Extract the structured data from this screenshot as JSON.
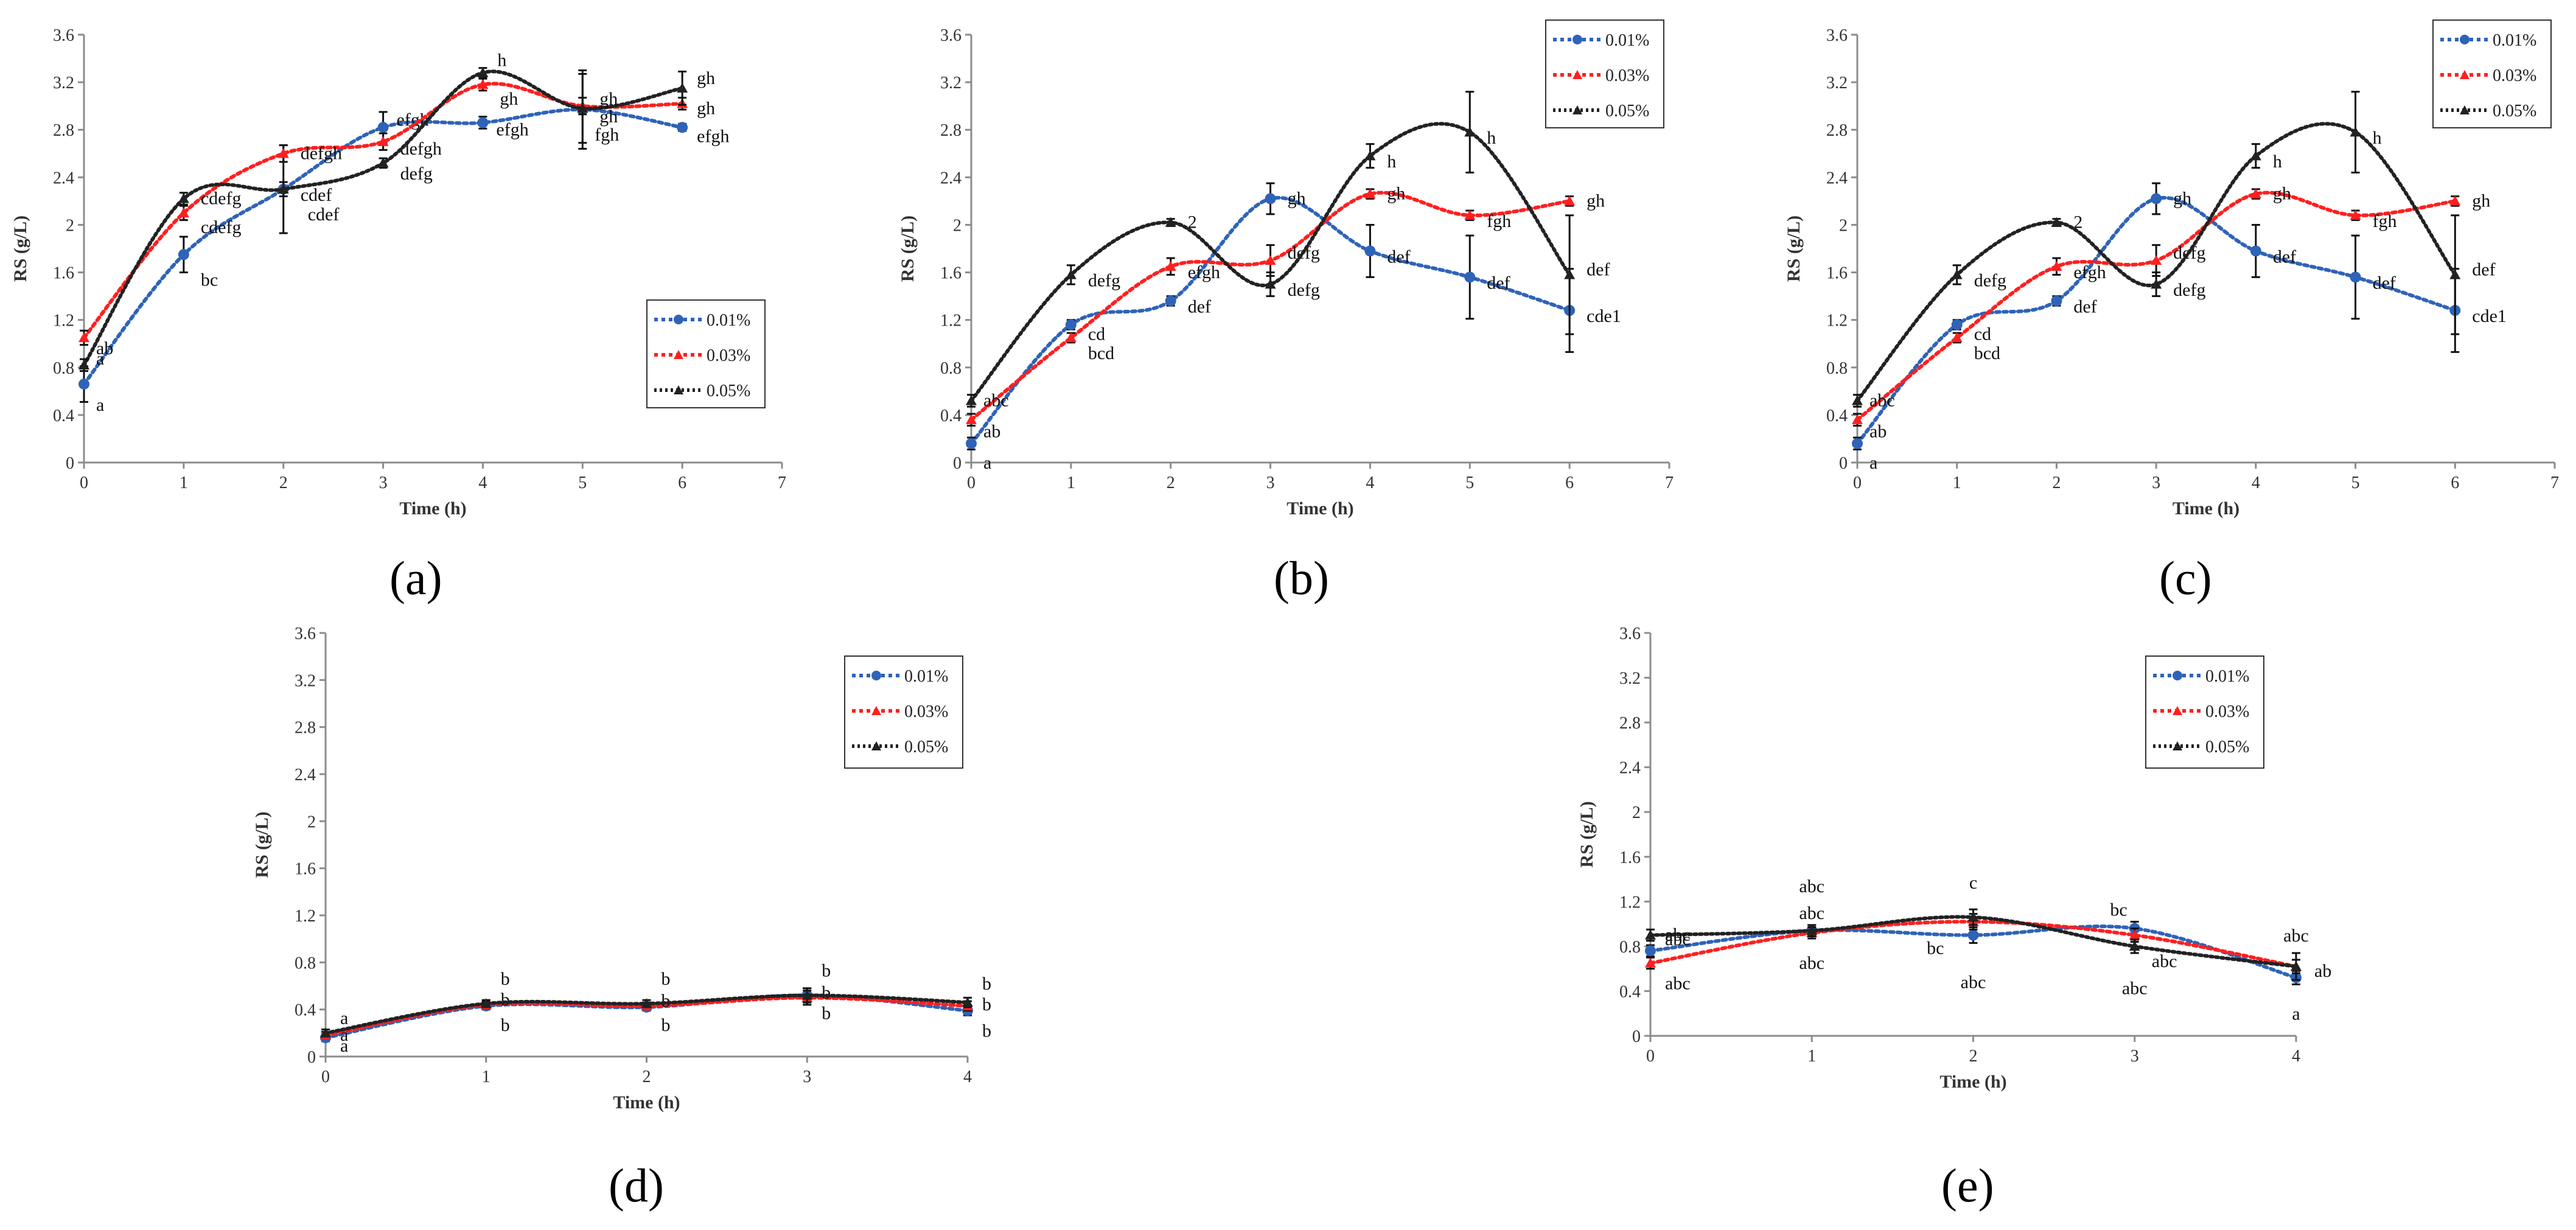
{
  "chart_data": [
    {
      "type": "line",
      "panel_label": "(a)",
      "xlabel": "Time (h)",
      "ylabel": "RS (g/L)",
      "xlim": [
        0,
        7
      ],
      "xticks": [
        "0",
        "1",
        "2",
        "3",
        "4",
        "5",
        "6",
        "7"
      ],
      "ylim": [
        0,
        3.6
      ],
      "yticks": [
        "0",
        "0.4",
        "0.8",
        "1.2",
        "1.6",
        "2",
        "2.4",
        "2.8",
        "3.2",
        "3.6"
      ],
      "legend_position": "middle-right",
      "x": [
        0,
        1,
        2,
        3,
        4,
        5,
        6
      ],
      "series": [
        {
          "name": "0.01%",
          "values": [
            0.66,
            1.75,
            2.3,
            2.82,
            2.86,
            2.97,
            2.82
          ],
          "errors": [
            0.15,
            0.15,
            0.37,
            0.13,
            0.05,
            0.33,
            0.03
          ],
          "labels": [
            "a",
            "bc",
            "cdef",
            "efgh",
            "efgh",
            "fgh",
            "efgh"
          ]
        },
        {
          "name": "0.03%",
          "values": [
            1.05,
            2.1,
            2.6,
            2.7,
            3.18,
            3.0,
            3.02
          ],
          "errors": [
            0.06,
            0.06,
            0.07,
            0.07,
            0.05,
            0.07,
            0.05
          ],
          "labels": [
            "ab",
            "cdefg",
            "defgh",
            "defgh",
            "gh",
            "gh",
            "gh"
          ]
        },
        {
          "name": "0.05%",
          "values": [
            0.82,
            2.22,
            2.3,
            2.52,
            3.28,
            2.98,
            3.15
          ],
          "errors": [
            0.05,
            0.05,
            0.06,
            0.04,
            0.04,
            0.29,
            0.14
          ],
          "labels": [
            "a",
            "cdefg",
            "cdef",
            "defg",
            "h",
            "gh",
            "gh"
          ]
        }
      ]
    },
    {
      "type": "line",
      "panel_label": "(b)",
      "xlabel": "Time (h)",
      "ylabel": "RS (g/L)",
      "xlim": [
        0,
        7
      ],
      "xticks": [
        "0",
        "1",
        "2",
        "3",
        "4",
        "5",
        "6",
        "7"
      ],
      "ylim": [
        0,
        3.6
      ],
      "yticks": [
        "0",
        "0.4",
        "0.8",
        "1.2",
        "1.6",
        "2",
        "2.4",
        "2.8",
        "3.2",
        "3.6"
      ],
      "legend_position": "top-right",
      "x": [
        0,
        1,
        2,
        3,
        4,
        5,
        6
      ],
      "series": [
        {
          "name": "0.01%",
          "values": [
            0.16,
            1.16,
            1.36,
            2.22,
            1.78,
            1.56,
            1.28
          ],
          "errors": [
            0.05,
            0.04,
            0.04,
            0.13,
            0.22,
            0.35,
            0.35
          ],
          "labels": [
            "a",
            "cd",
            "def",
            "gh",
            "def",
            "def",
            "cde1"
          ]
        },
        {
          "name": "0.03%",
          "values": [
            0.36,
            1.05,
            1.65,
            1.7,
            2.26,
            2.08,
            2.2
          ],
          "errors": [
            0.05,
            0.04,
            0.07,
            0.13,
            0.04,
            0.04,
            0.04
          ],
          "labels": [
            "ab",
            "bcd",
            "efgh",
            "defg",
            "gh",
            "fgh",
            "gh"
          ]
        },
        {
          "name": "0.05%",
          "values": [
            0.52,
            1.58,
            2.02,
            1.5,
            2.58,
            2.78,
            1.58
          ],
          "errors": [
            0.05,
            0.08,
            0.03,
            0.1,
            0.1,
            0.34,
            0.5
          ],
          "labels": [
            "abc",
            "defg",
            "2",
            "defg",
            "h",
            "h",
            "def"
          ]
        }
      ]
    },
    {
      "type": "line",
      "panel_label": "(c)",
      "xlabel": "Time (h)",
      "ylabel": "RS (g/L)",
      "xlim": [
        0,
        7
      ],
      "xticks": [
        "0",
        "1",
        "2",
        "3",
        "4",
        "5",
        "6",
        "7"
      ],
      "ylim": [
        0,
        3.6
      ],
      "yticks": [
        "0",
        "0.4",
        "0.8",
        "1.2",
        "1.6",
        "2",
        "2.4",
        "2.8",
        "3.2",
        "3.6"
      ],
      "legend_position": "top-right",
      "x": [
        0,
        1,
        2,
        3,
        4,
        5,
        6
      ],
      "series": [
        {
          "name": "0.01%",
          "values": [
            0.16,
            1.16,
            1.36,
            2.22,
            1.78,
            1.56,
            1.28
          ],
          "errors": [
            0.05,
            0.04,
            0.04,
            0.13,
            0.22,
            0.35,
            0.35
          ],
          "labels": [
            "a",
            "cd",
            "def",
            "gh",
            "def",
            "def",
            "cde1"
          ]
        },
        {
          "name": "0.03%",
          "values": [
            0.36,
            1.05,
            1.65,
            1.7,
            2.26,
            2.08,
            2.2
          ],
          "errors": [
            0.05,
            0.04,
            0.07,
            0.13,
            0.04,
            0.04,
            0.04
          ],
          "labels": [
            "ab",
            "bcd",
            "efgh",
            "defg",
            "gh",
            "fgh",
            "gh"
          ]
        },
        {
          "name": "0.05%",
          "values": [
            0.52,
            1.58,
            2.02,
            1.5,
            2.58,
            2.78,
            1.58
          ],
          "errors": [
            0.05,
            0.08,
            0.03,
            0.1,
            0.1,
            0.34,
            0.5
          ],
          "labels": [
            "abc",
            "defg",
            "2",
            "defg",
            "h",
            "h",
            "def"
          ]
        }
      ]
    },
    {
      "type": "line",
      "panel_label": "(d)",
      "xlabel": "Time (h)",
      "ylabel": "RS (g/L)",
      "xlim": [
        0,
        4
      ],
      "xticks": [
        "0",
        "1",
        "2",
        "3",
        "4"
      ],
      "ylim": [
        0,
        3.6
      ],
      "yticks": [
        "0",
        "0.4",
        "0.8",
        "1.2",
        "1.6",
        "2",
        "2.4",
        "2.8",
        "3.2",
        "3.6"
      ],
      "legend_position": "top-right",
      "x": [
        0,
        1,
        2,
        3,
        4
      ],
      "series": [
        {
          "name": "0.01%",
          "values": [
            0.16,
            0.43,
            0.42,
            0.52,
            0.39
          ],
          "errors": [
            0.03,
            0.03,
            0.03,
            0.06,
            0.04
          ],
          "labels": [
            "a",
            "b",
            "b",
            "b",
            "b"
          ]
        },
        {
          "name": "0.03%",
          "values": [
            0.18,
            0.44,
            0.43,
            0.5,
            0.43
          ],
          "errors": [
            0.03,
            0.03,
            0.03,
            0.06,
            0.04
          ],
          "labels": [
            "a",
            "b",
            "b",
            "b",
            "b"
          ]
        },
        {
          "name": "0.05%",
          "values": [
            0.2,
            0.45,
            0.45,
            0.52,
            0.46
          ],
          "errors": [
            0.03,
            0.03,
            0.03,
            0.06,
            0.04
          ],
          "labels": [
            "a",
            "b",
            "b",
            "b",
            "b"
          ]
        }
      ]
    },
    {
      "type": "line",
      "panel_label": "(e)",
      "xlabel": "Time (h)",
      "ylabel": "RS (g/L)",
      "xlim": [
        0,
        4
      ],
      "xticks": [
        "0",
        "1",
        "2",
        "3",
        "4"
      ],
      "ylim": [
        0,
        3.6
      ],
      "yticks": [
        "0",
        "0.4",
        "0.8",
        "1.2",
        "1.6",
        "2",
        "2.4",
        "2.8",
        "3.2",
        "3.6"
      ],
      "legend_position": "top-right",
      "x": [
        0,
        1,
        2,
        3,
        4
      ],
      "series": [
        {
          "name": "0.01%",
          "values": [
            0.76,
            0.94,
            0.9,
            0.96,
            0.52
          ],
          "errors": [
            0.05,
            0.05,
            0.07,
            0.06,
            0.06
          ],
          "labels": [
            "abc",
            "abc",
            "bc",
            "bc",
            "a"
          ]
        },
        {
          "name": "0.03%",
          "values": [
            0.65,
            0.92,
            1.02,
            0.9,
            0.62
          ],
          "errors": [
            0.05,
            0.05,
            0.07,
            0.06,
            0.06
          ],
          "labels": [
            "abc",
            "abc",
            "abc",
            "abc",
            "ab"
          ]
        },
        {
          "name": "0.05%",
          "values": [
            0.9,
            0.94,
            1.06,
            0.8,
            0.62
          ],
          "errors": [
            0.05,
            0.05,
            0.07,
            0.06,
            0.12
          ],
          "labels": [
            "abc",
            "abc",
            "c",
            "abc",
            "abc"
          ]
        }
      ]
    }
  ],
  "colors": {
    "0.01%": "#2e63b8",
    "0.03%": "#ff1f1f",
    "0.05%": "#222222"
  }
}
